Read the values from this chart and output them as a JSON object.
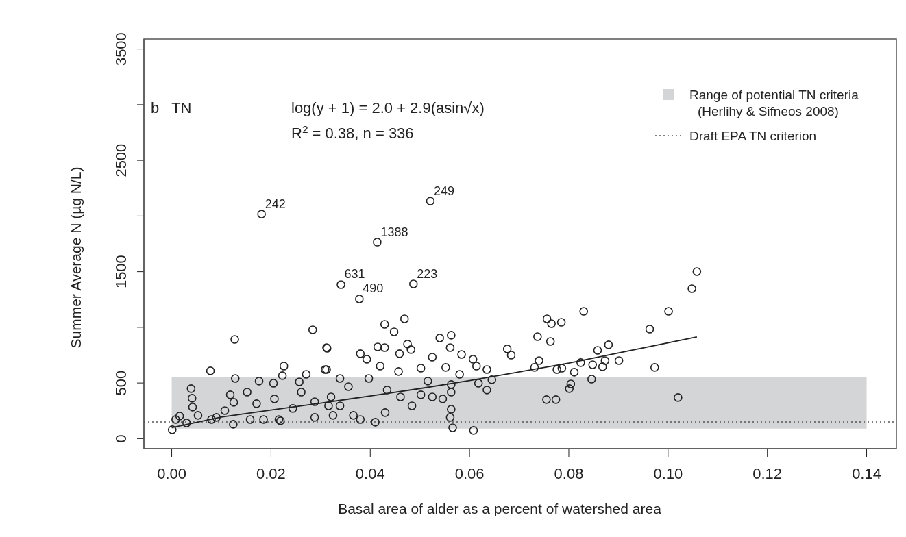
{
  "chart_data": {
    "type": "scatter",
    "xlabel": "Basal area of alder as a percent of watershed area",
    "ylabel": "Summer Average N (µg N/L)",
    "xlim": [
      -0.0056,
      0.146
    ],
    "ylim": [
      -90,
      3590
    ],
    "xticks": [
      {
        "value": 0,
        "label": "0.00"
      },
      {
        "value": 0.02,
        "label": "0.02"
      },
      {
        "value": 0.04,
        "label": "0.04"
      },
      {
        "value": 0.06,
        "label": "0.06"
      },
      {
        "value": 0.08,
        "label": "0.08"
      },
      {
        "value": 0.1,
        "label": "0.10"
      },
      {
        "value": 0.12,
        "label": "0.12"
      },
      {
        "value": 0.14,
        "label": "0.14"
      }
    ],
    "yticks": [
      0,
      500,
      {
        "value": 1000,
        "label": null
      },
      1500,
      {
        "value": 2000,
        "label": null
      },
      2500,
      {
        "value": 3000,
        "label": null
      },
      3500
    ],
    "grid": false,
    "legend": "top right",
    "marker": "circle",
    "series": [
      {
        "type": "scatter",
        "color": "#222222",
        "x": [
          0.0181,
          0.0521,
          0.0414,
          0.0341,
          0.0378,
          0.0487,
          0.1058,
          0.1048,
          0.1001,
          0.0963,
          0.0973,
          0.102,
          0.083,
          0.0756,
          0.0765,
          0.0785,
          0.0737,
          0.0763,
          0.0676,
          0.0684,
          0.074,
          0.0731,
          0.0776,
          0.0786,
          0.0811,
          0.0824,
          0.0848,
          0.0858,
          0.088,
          0.0873,
          0.0868,
          0.0901,
          0.0846,
          0.0804,
          0.0801,
          0.0755,
          0.0774,
          0.0469,
          0.0429,
          0.0448,
          0.054,
          0.0563,
          0.0561,
          0.0415,
          0.0429,
          0.0475,
          0.0482,
          0.038,
          0.0393,
          0.0459,
          0.0525,
          0.0584,
          0.0607,
          0.0614,
          0.0635,
          0.0645,
          0.0618,
          0.0635,
          0.0312,
          0.0312,
          0.042,
          0.0457,
          0.0502,
          0.0552,
          0.058,
          0.0563,
          0.0563,
          0.0563,
          0.0561,
          0.0566,
          0.0608,
          0.038,
          0.041,
          0.0356,
          0.0397,
          0.0434,
          0.0461,
          0.0484,
          0.0502,
          0.0525,
          0.0546,
          0.0339,
          0.0366,
          0.043,
          0.0321,
          0.0516,
          0.0001,
          0.0127,
          0.0078,
          0.0039,
          0.0041,
          0.0042,
          0.0128,
          0.0176,
          0.0118,
          0.0226,
          0.0223,
          0.0271,
          0.0284,
          0.0313,
          0.0309,
          0.0339,
          0.0257,
          0.0205,
          0.0016,
          0.0053,
          0.008,
          0.0107,
          0.0125,
          0.0124,
          0.0152,
          0.0158,
          0.0171,
          0.0185,
          0.0216,
          0.0207,
          0.0244,
          0.0261,
          0.0288,
          0.0288,
          0.0316,
          0.0325,
          0.0219,
          0.003,
          0.0008,
          0.009
        ],
        "values": [
          2017,
          2134,
          1765,
          1384,
          1255,
          1390,
          1501,
          1347,
          1144,
          984,
          640,
          369,
          1144,
          1076,
          1033,
          1045,
          916,
          873,
          806,
          750,
          701,
          640,
          621,
          633,
          597,
          683,
          664,
          793,
          843,
          701,
          646,
          701,
          535,
          492,
          449,
          351,
          351,
          1076,
          1027,
          959,
          904,
          929,
          818,
          824,
          818,
          849,
          800,
          763,
          713,
          763,
          732,
          756,
          713,
          652,
          621,
          529,
          498,
          437,
          818,
          621,
          652,
          603,
          633,
          640,
          578,
          486,
          418,
          264,
          191,
          98,
          74,
          172,
          148,
          467,
          541,
          437,
          375,
          295,
          394,
          375,
          357,
          295,
          209,
          234,
          375,
          517,
          80,
          892,
          609,
          449,
          363,
          283,
          541,
          517,
          394,
          652,
          566,
          578,
          978,
          812,
          621,
          541,
          510,
          498,
          203,
          209,
          172,
          252,
          326,
          129,
          418,
          172,
          314,
          172,
          172,
          357,
          271,
          418,
          332,
          191,
          295,
          209,
          160,
          141,
          172,
          191
        ]
      },
      {
        "type": "line",
        "color": "#222222",
        "marker": "none",
        "line_style": "solid",
        "x": [
          0,
          0.01,
          0.02,
          0.03,
          0.04,
          0.05,
          0.06,
          0.08,
          0.1058
        ],
        "values": [
          99,
          194,
          257,
          319,
          383,
          450,
          521,
          678,
          914
        ]
      }
    ],
    "bands": [
      {
        "axis": "y",
        "from": 90,
        "to": 550,
        "color": "#d4d5d7",
        "label": "Range of potential TN criteria\n(Herlihy & Sifneos 2008)"
      }
    ],
    "ref_lines": [
      {
        "axis": "y",
        "value": 150,
        "color": "#555555",
        "line_style": "dotted",
        "label": "Draft EPA TN criterion"
      }
    ],
    "annotations": [
      "b   TN",
      "log(y + 1) = 2.0 + 2.9(asin√x)",
      "R$^{2}$ = 0.38, n = 336",
      {
        "text": "242",
        "x": 0.0181,
        "y": 2017
      },
      {
        "text": "249",
        "x": 0.0521,
        "y": 2134
      },
      {
        "text": "1388",
        "x": 0.0414,
        "y": 1765
      },
      {
        "text": "631",
        "x": 0.0341,
        "y": 1384
      },
      {
        "text": "490",
        "x": 0.0378,
        "y": 1255
      },
      {
        "text": "223",
        "x": 0.0487,
        "y": 1390
      }
    ]
  }
}
